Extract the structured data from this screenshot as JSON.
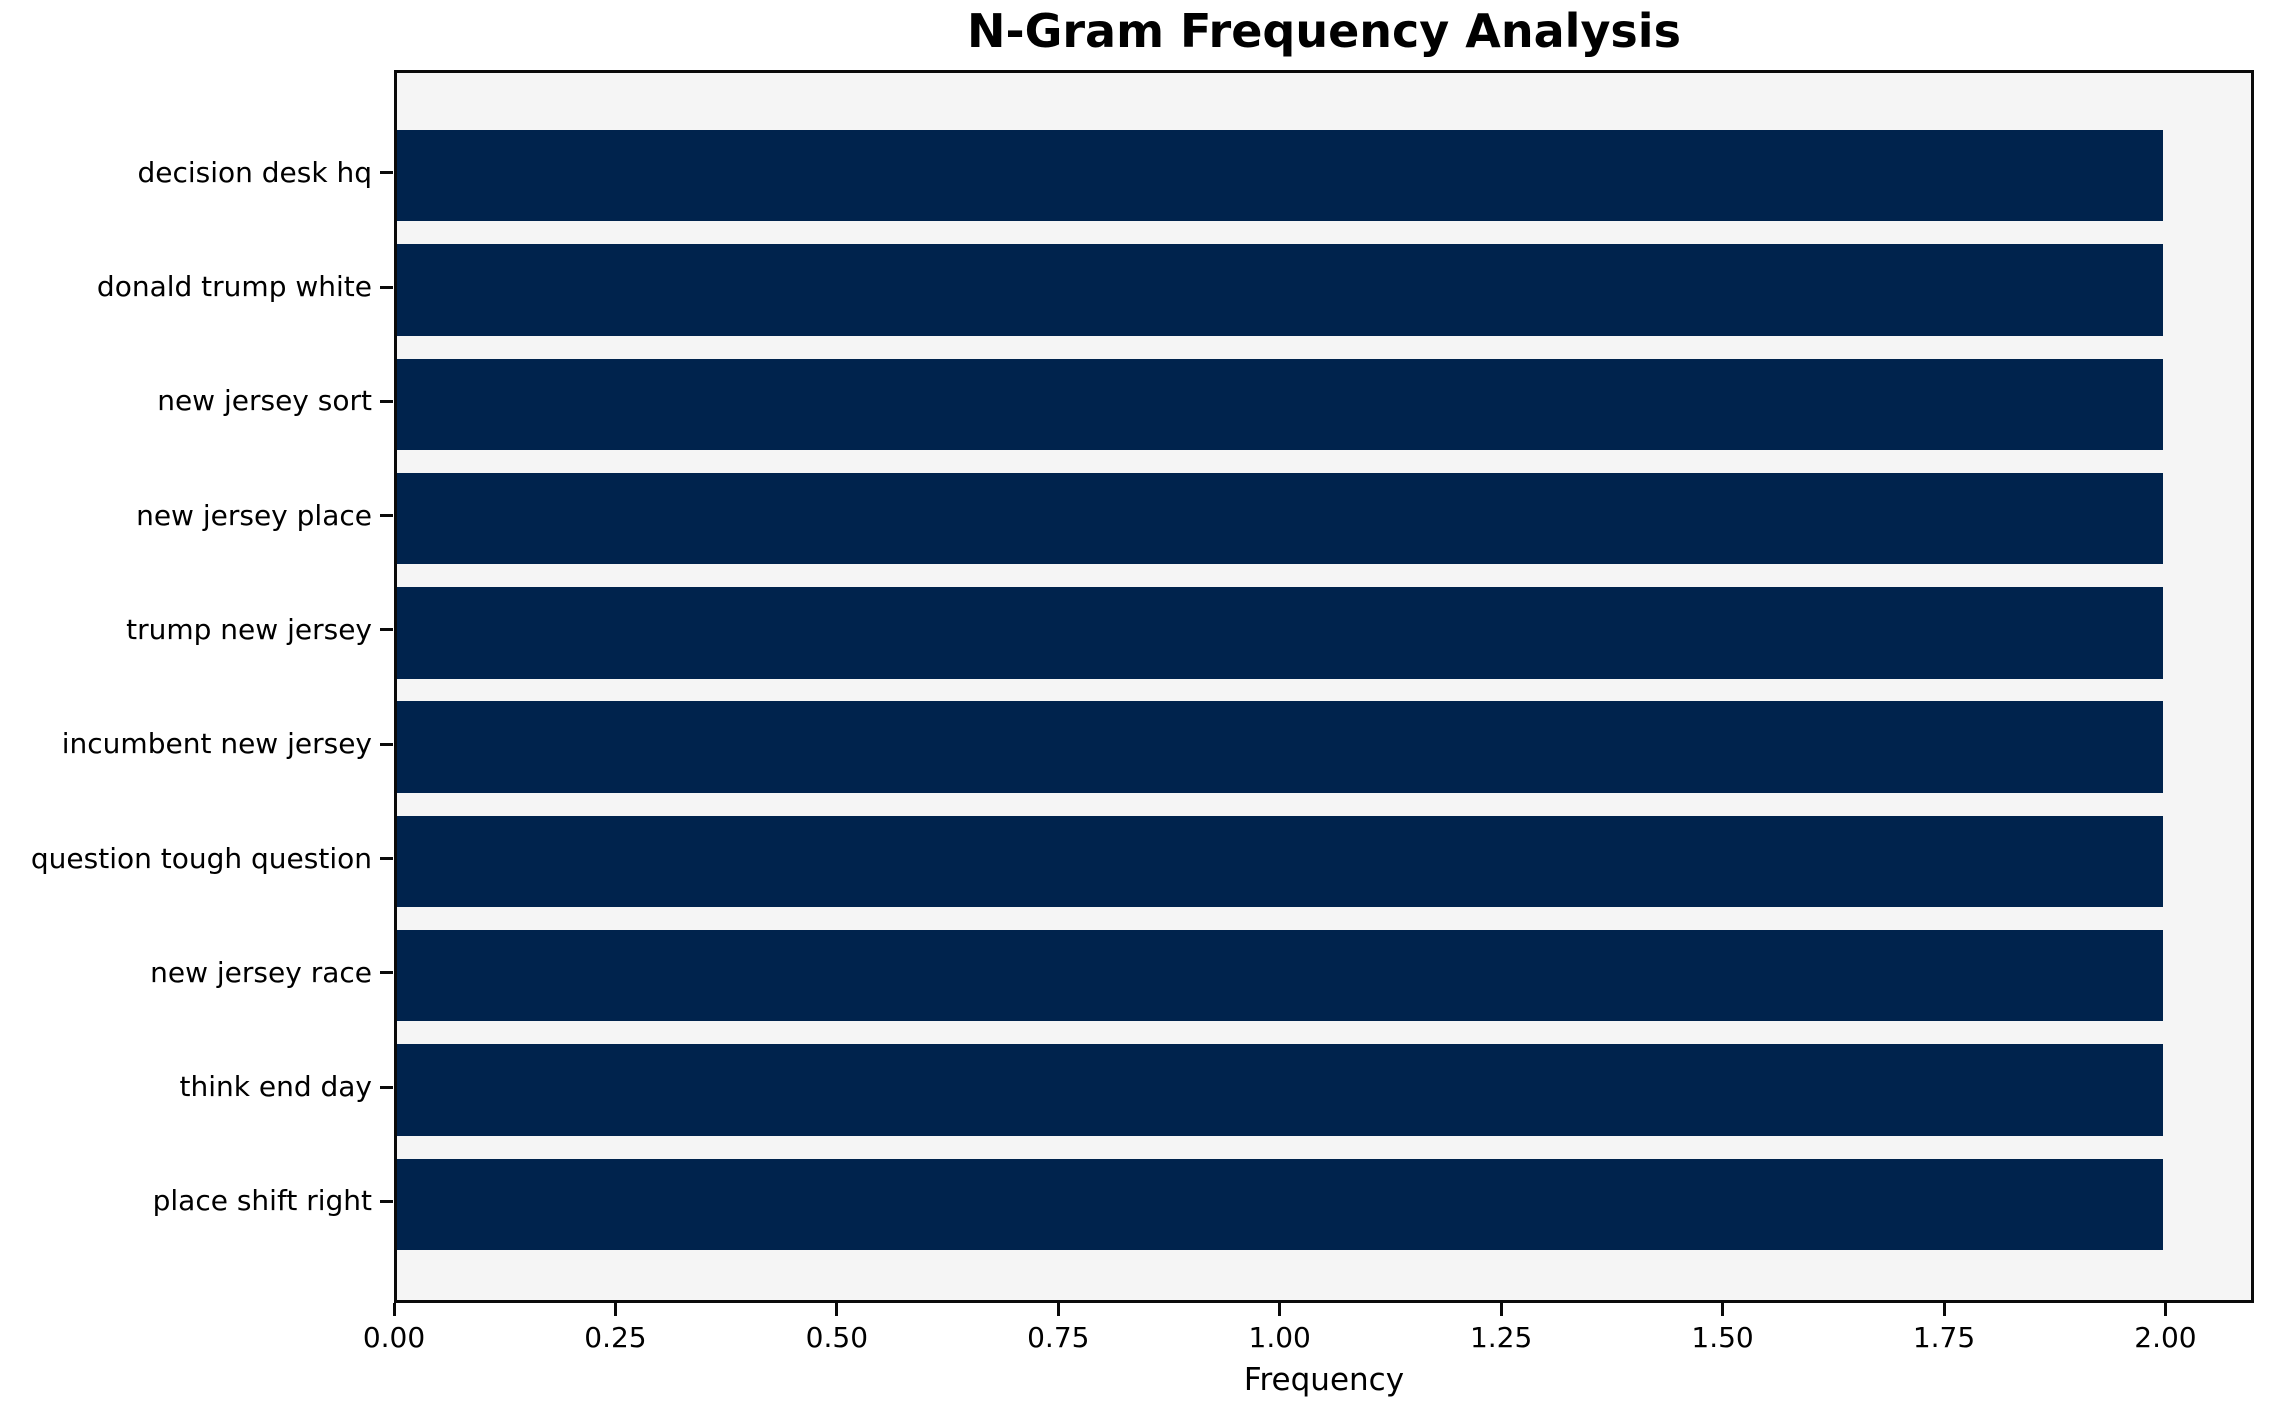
{
  "chart_data": {
    "type": "bar",
    "orientation": "horizontal",
    "title": "N-Gram Frequency Analysis",
    "xlabel": "Frequency",
    "ylabel": "",
    "categories": [
      "decision desk hq",
      "donald trump white",
      "new jersey sort",
      "new jersey place",
      "trump new jersey",
      "incumbent new jersey",
      "question tough question",
      "new jersey race",
      "think end day",
      "place shift right"
    ],
    "values": [
      2,
      2,
      2,
      2,
      2,
      2,
      2,
      2,
      2,
      2
    ],
    "xlim": [
      0,
      2.1
    ],
    "xtick_values": [
      0.0,
      0.25,
      0.5,
      0.75,
      1.0,
      1.25,
      1.5,
      1.75,
      2.0
    ],
    "xtick_labels": [
      "0.00",
      "0.25",
      "0.50",
      "0.75",
      "1.00",
      "1.25",
      "1.50",
      "1.75",
      "2.00"
    ],
    "grid": false,
    "legend": null,
    "bar_color": "#00234d",
    "plot_background": "#f5f5f5",
    "figure_background": "#ffffff",
    "spine_color": "#0a0a0a"
  }
}
